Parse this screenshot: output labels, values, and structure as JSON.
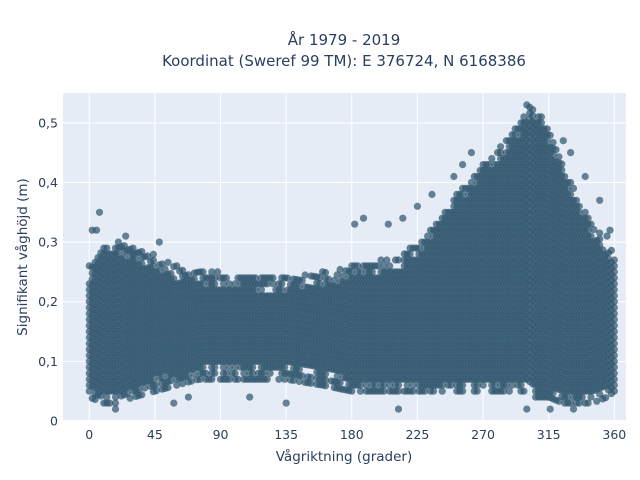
{
  "chart_data": {
    "type": "scatter",
    "title": [
      "År 1979 - 2019",
      "Koordinat (Sweref 99 TM): E 376724, N 6168386"
    ],
    "xlabel": "Vågriktning (grader)",
    "ylabel": "Signifikant våghöjd (m)",
    "xlim": [
      -18,
      368
    ],
    "ylim": [
      0,
      0.55
    ],
    "x_ticks": [
      0,
      45,
      90,
      135,
      180,
      225,
      270,
      315,
      360
    ],
    "x_tick_labels": [
      "0",
      "45",
      "90",
      "135",
      "180",
      "225",
      "270",
      "315",
      "360"
    ],
    "y_ticks": [
      0,
      0.1,
      0.2,
      0.3,
      0.4,
      0.5
    ],
    "y_tick_labels": [
      "0",
      "0,1",
      "0,2",
      "0,3",
      "0,4",
      "0,5"
    ],
    "grid": true,
    "marker_color": "#30566e",
    "plot_bgcolor": "#e5ecf6",
    "direction_step_deg": 2,
    "height_step_m": 0.01,
    "envelope": {
      "direction": [
        0,
        10,
        20,
        30,
        45,
        60,
        75,
        90,
        110,
        135,
        160,
        180,
        200,
        215,
        225,
        240,
        255,
        265,
        275,
        285,
        295,
        300,
        305,
        315,
        325,
        335,
        345,
        355,
        360
      ],
      "height_min": [
        0.04,
        0.03,
        0.03,
        0.04,
        0.05,
        0.06,
        0.07,
        0.07,
        0.07,
        0.07,
        0.06,
        0.05,
        0.05,
        0.05,
        0.05,
        0.05,
        0.05,
        0.05,
        0.05,
        0.05,
        0.05,
        0.05,
        0.04,
        0.04,
        0.03,
        0.03,
        0.03,
        0.04,
        0.05
      ],
      "height_max": [
        0.26,
        0.29,
        0.3,
        0.29,
        0.28,
        0.26,
        0.25,
        0.25,
        0.24,
        0.24,
        0.25,
        0.26,
        0.27,
        0.28,
        0.3,
        0.34,
        0.39,
        0.42,
        0.44,
        0.47,
        0.5,
        0.53,
        0.53,
        0.49,
        0.43,
        0.38,
        0.33,
        0.3,
        0.28
      ]
    },
    "outliers": [
      {
        "x": 7,
        "y": 0.35
      },
      {
        "x": 2,
        "y": 0.32
      },
      {
        "x": 5,
        "y": 0.32
      },
      {
        "x": 48,
        "y": 0.3
      },
      {
        "x": 25,
        "y": 0.31
      },
      {
        "x": 58,
        "y": 0.03
      },
      {
        "x": 68,
        "y": 0.04
      },
      {
        "x": 18,
        "y": 0.02
      },
      {
        "x": 135,
        "y": 0.03
      },
      {
        "x": 110,
        "y": 0.04
      },
      {
        "x": 182,
        "y": 0.33
      },
      {
        "x": 188,
        "y": 0.34
      },
      {
        "x": 205,
        "y": 0.33
      },
      {
        "x": 215,
        "y": 0.34
      },
      {
        "x": 225,
        "y": 0.36
      },
      {
        "x": 235,
        "y": 0.38
      },
      {
        "x": 250,
        "y": 0.41
      },
      {
        "x": 256,
        "y": 0.43
      },
      {
        "x": 262,
        "y": 0.45
      },
      {
        "x": 330,
        "y": 0.45
      },
      {
        "x": 340,
        "y": 0.41
      },
      {
        "x": 350,
        "y": 0.37
      },
      {
        "x": 325,
        "y": 0.47
      },
      {
        "x": 212,
        "y": 0.02
      },
      {
        "x": 300,
        "y": 0.02
      },
      {
        "x": 316,
        "y": 0.02
      },
      {
        "x": 332,
        "y": 0.02
      },
      {
        "x": 357,
        "y": 0.32
      },
      {
        "x": 355,
        "y": 0.31
      }
    ]
  }
}
